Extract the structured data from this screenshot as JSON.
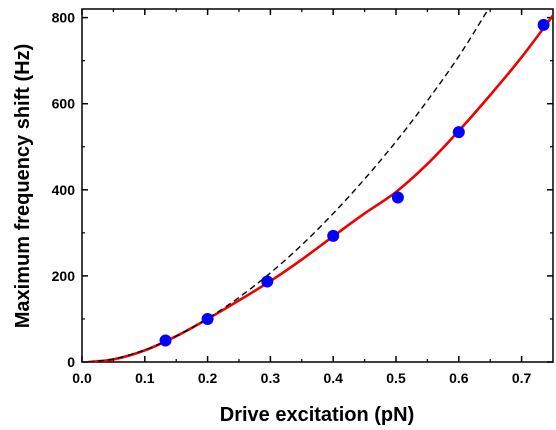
{
  "chart_data": {
    "type": "scatter",
    "xlabel": "Drive excitation (pN)",
    "ylabel": "Maximum frequency shift (Hz)",
    "xlim": [
      0.0,
      0.75
    ],
    "ylim": [
      0,
      820
    ],
    "x_ticks": [
      "0.0",
      "0.1",
      "0.2",
      "0.3",
      "0.4",
      "0.5",
      "0.6",
      "0.7"
    ],
    "y_ticks": [
      "0",
      "200",
      "400",
      "600",
      "800"
    ],
    "grid": false,
    "legend": "none",
    "series": [
      {
        "kind": "points",
        "color": "#0000ff",
        "points": [
          {
            "x": 0.133,
            "y": 50
          },
          {
            "x": 0.2,
            "y": 100
          },
          {
            "x": 0.295,
            "y": 187
          },
          {
            "x": 0.4,
            "y": 293
          },
          {
            "x": 0.503,
            "y": 382
          },
          {
            "x": 0.6,
            "y": 534
          },
          {
            "x": 0.735,
            "y": 783
          }
        ]
      },
      {
        "kind": "line",
        "style": "solid",
        "color": "#ee0000",
        "points": [
          {
            "x": 0.01,
            "y": 0
          },
          {
            "x": 0.05,
            "y": 6
          },
          {
            "x": 0.1,
            "y": 27
          },
          {
            "x": 0.15,
            "y": 60
          },
          {
            "x": 0.2,
            "y": 100
          },
          {
            "x": 0.25,
            "y": 143
          },
          {
            "x": 0.3,
            "y": 188
          },
          {
            "x": 0.35,
            "y": 238
          },
          {
            "x": 0.4,
            "y": 292
          },
          {
            "x": 0.45,
            "y": 345
          },
          {
            "x": 0.5,
            "y": 395
          },
          {
            "x": 0.55,
            "y": 460
          },
          {
            "x": 0.6,
            "y": 537
          },
          {
            "x": 0.65,
            "y": 620
          },
          {
            "x": 0.7,
            "y": 708
          },
          {
            "x": 0.75,
            "y": 805
          }
        ]
      },
      {
        "kind": "line",
        "style": "dashed",
        "color": "#000000",
        "points": [
          {
            "x": 0.01,
            "y": 0
          },
          {
            "x": 0.05,
            "y": 7
          },
          {
            "x": 0.1,
            "y": 28
          },
          {
            "x": 0.15,
            "y": 60
          },
          {
            "x": 0.2,
            "y": 101
          },
          {
            "x": 0.25,
            "y": 150
          },
          {
            "x": 0.3,
            "y": 207
          },
          {
            "x": 0.35,
            "y": 272
          },
          {
            "x": 0.4,
            "y": 345
          },
          {
            "x": 0.45,
            "y": 425
          },
          {
            "x": 0.5,
            "y": 512
          },
          {
            "x": 0.55,
            "y": 607
          },
          {
            "x": 0.6,
            "y": 710
          },
          {
            "x": 0.645,
            "y": 815
          }
        ]
      }
    ]
  }
}
